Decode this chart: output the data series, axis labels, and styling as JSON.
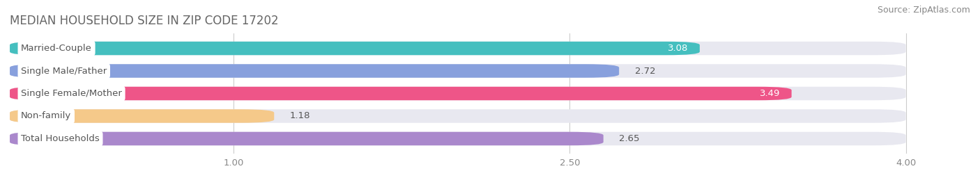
{
  "title": "MEDIAN HOUSEHOLD SIZE IN ZIP CODE 17202",
  "source": "Source: ZipAtlas.com",
  "categories": [
    "Married-Couple",
    "Single Male/Father",
    "Single Female/Mother",
    "Non-family",
    "Total Households"
  ],
  "values": [
    3.08,
    2.72,
    3.49,
    1.18,
    2.65
  ],
  "bar_colors": [
    "#45BFBF",
    "#88A0DD",
    "#EE5588",
    "#F5C98A",
    "#AA88CC"
  ],
  "background_color": "#ffffff",
  "bar_bg_color": "#e8e8f0",
  "xlim": [
    0,
    4.2
  ],
  "xmin": 0,
  "xmax": 4.0,
  "xticks": [
    1.0,
    2.5,
    4.0
  ],
  "title_fontsize": 12,
  "source_fontsize": 9,
  "label_fontsize": 9.5,
  "value_fontsize": 9.5
}
